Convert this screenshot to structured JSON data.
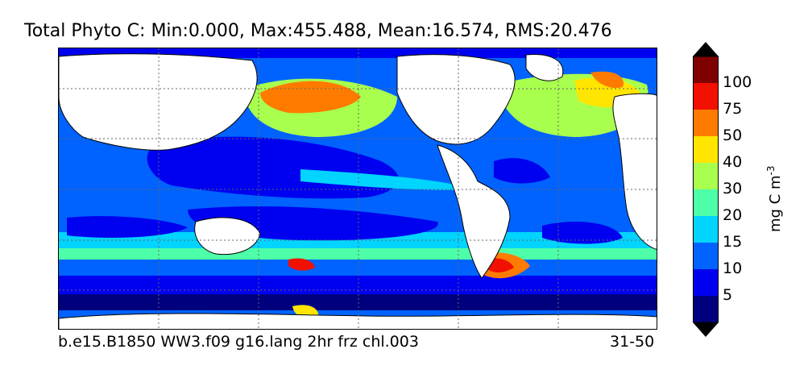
{
  "title": "Total Phyto C: Min:0.000, Max:455.488, Mean:16.574, RMS:20.476",
  "footer": {
    "case_name": "b.e15.B1850 WW3.f09 g16.lang 2hr frz chl.003",
    "years": "31-50"
  },
  "colorbar": {
    "units_text": "mg C m",
    "units_exponent": "-3",
    "levels": [
      "5",
      "10",
      "15",
      "20",
      "30",
      "40",
      "50",
      "75",
      "100"
    ],
    "colors": [
      "#00007f",
      "#0000f0",
      "#0063ff",
      "#00d4ff",
      "#4effa9",
      "#a9ff4e",
      "#ffe500",
      "#ff7b00",
      "#f21000",
      "#7f0000"
    ]
  },
  "map": {
    "type": "filled contour (global ocean)",
    "land_color": "#ffffff",
    "gridlines": "dotted"
  }
}
